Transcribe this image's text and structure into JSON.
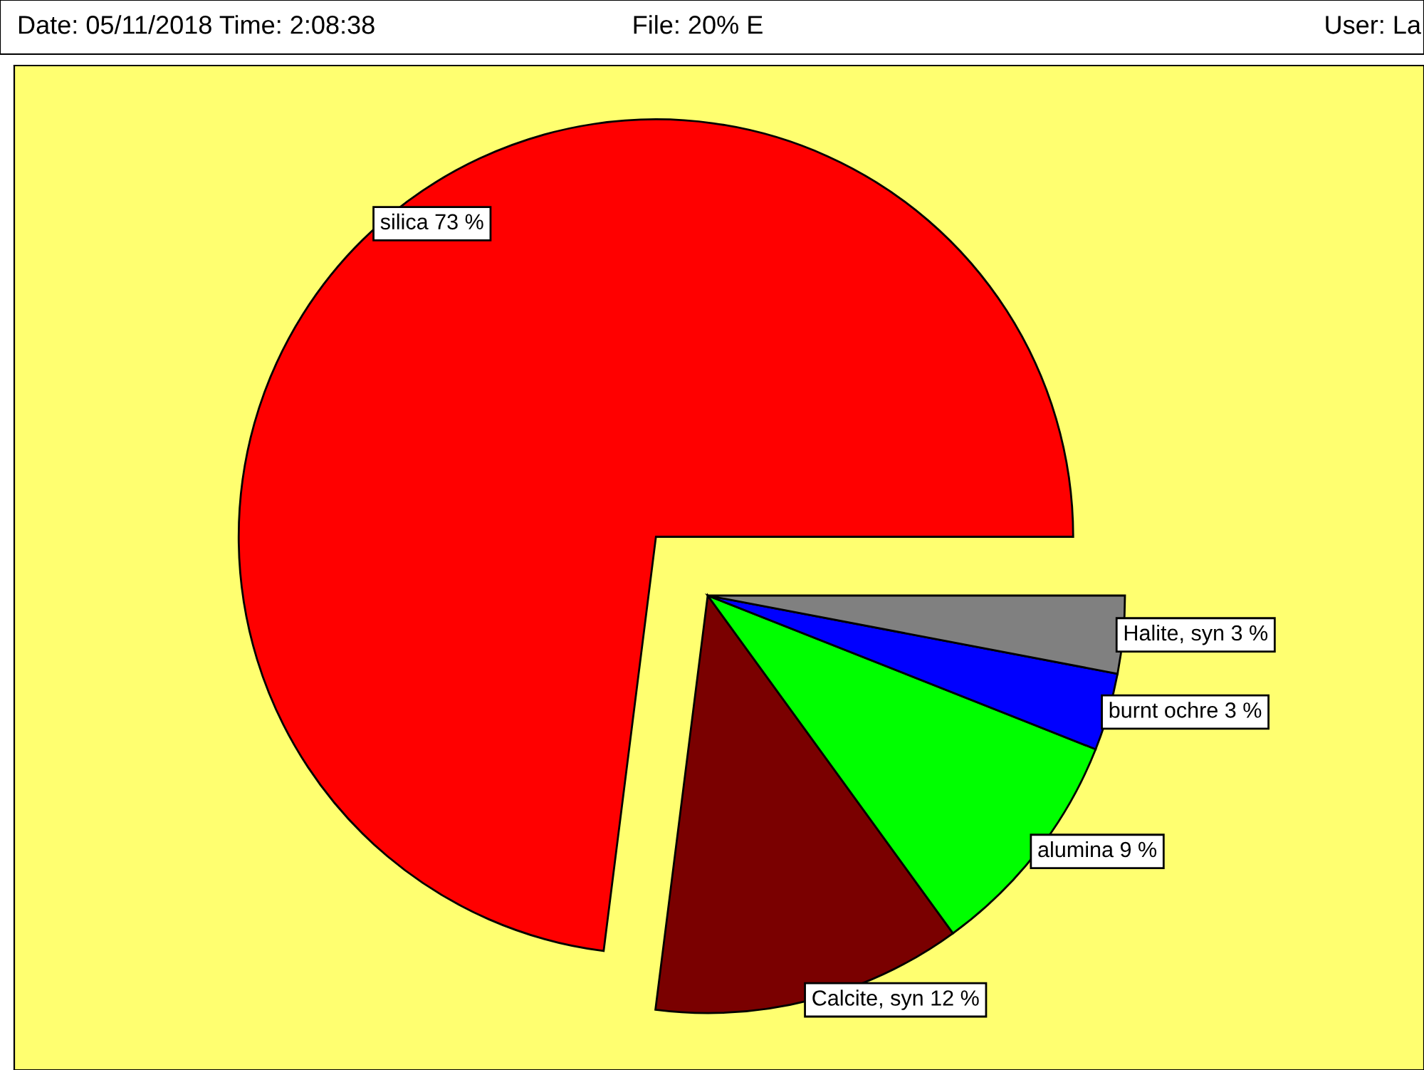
{
  "chart_data": {
    "type": "pie",
    "categories": [
      "silica",
      "Calcite, syn",
      "alumina",
      "burnt ochre",
      "Halite, syn"
    ],
    "values": [
      73,
      12,
      9,
      3,
      3
    ],
    "value_labels": [
      "73 %",
      "12 %",
      "9 %",
      "3 %",
      "3 %"
    ],
    "colors": [
      "#ff0000",
      "#7a0000",
      "#00ff00",
      "#0000ff",
      "#808080"
    ],
    "annotations": [
      "Date: 05/11/2018 Time: 2:08:38",
      "File: 20% E",
      "User: La"
    ],
    "legend": false
  }
}
